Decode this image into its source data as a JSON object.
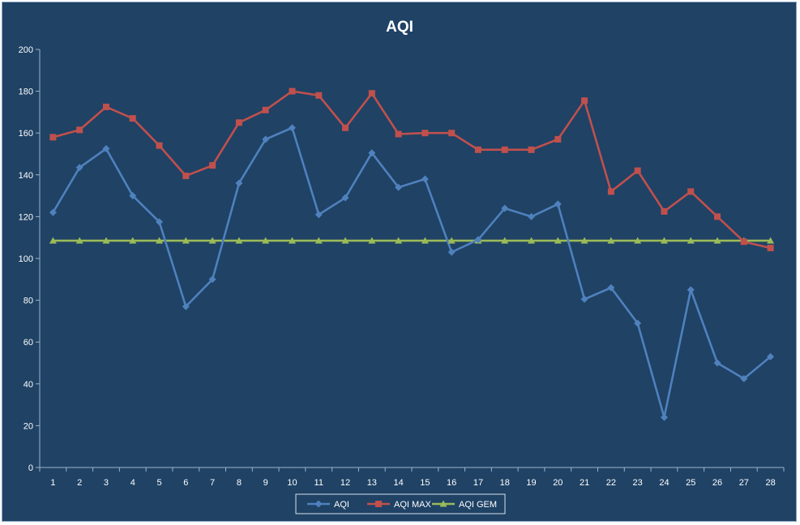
{
  "chart_data": {
    "type": "line",
    "title": "AQI",
    "xlabel": "",
    "ylabel": "",
    "ylim": [
      0,
      200
    ],
    "yticks": [
      0,
      20,
      40,
      60,
      80,
      100,
      120,
      140,
      160,
      180,
      200
    ],
    "categories": [
      "1",
      "2",
      "3",
      "4",
      "5",
      "6",
      "7",
      "8",
      "9",
      "10",
      "11",
      "12",
      "13",
      "14",
      "15",
      "16",
      "17",
      "18",
      "19",
      "20",
      "21",
      "22",
      "23",
      "24",
      "25",
      "26",
      "27",
      "28"
    ],
    "grid": false,
    "legend_position": "bottom",
    "series": [
      {
        "name": "AQI",
        "color": "#4f81bd",
        "marker": "diamond",
        "values": [
          122,
          143.5,
          152.5,
          130,
          117.5,
          77,
          90,
          136,
          157,
          162.5,
          121,
          129,
          150.5,
          134,
          138,
          103,
          109,
          124,
          120,
          126,
          80.5,
          86,
          69,
          24,
          85,
          50,
          42.5,
          53
        ]
      },
      {
        "name": "AQI MAX",
        "color": "#c0504d",
        "marker": "square",
        "values": [
          158,
          161.5,
          172.5,
          167,
          154,
          139.5,
          144.5,
          165,
          171,
          180,
          178,
          162.5,
          179,
          159.5,
          160,
          160,
          152,
          152,
          152,
          157,
          175.5,
          132,
          142,
          122.5,
          132,
          120,
          108,
          105
        ]
      },
      {
        "name": "AQI GEM",
        "color": "#9bbb59",
        "marker": "triangle",
        "values": [
          108.5,
          108.5,
          108.5,
          108.5,
          108.5,
          108.5,
          108.5,
          108.5,
          108.5,
          108.5,
          108.5,
          108.5,
          108.5,
          108.5,
          108.5,
          108.5,
          108.5,
          108.5,
          108.5,
          108.5,
          108.5,
          108.5,
          108.5,
          108.5,
          108.5,
          108.5,
          108.5,
          108.5
        ]
      }
    ]
  }
}
